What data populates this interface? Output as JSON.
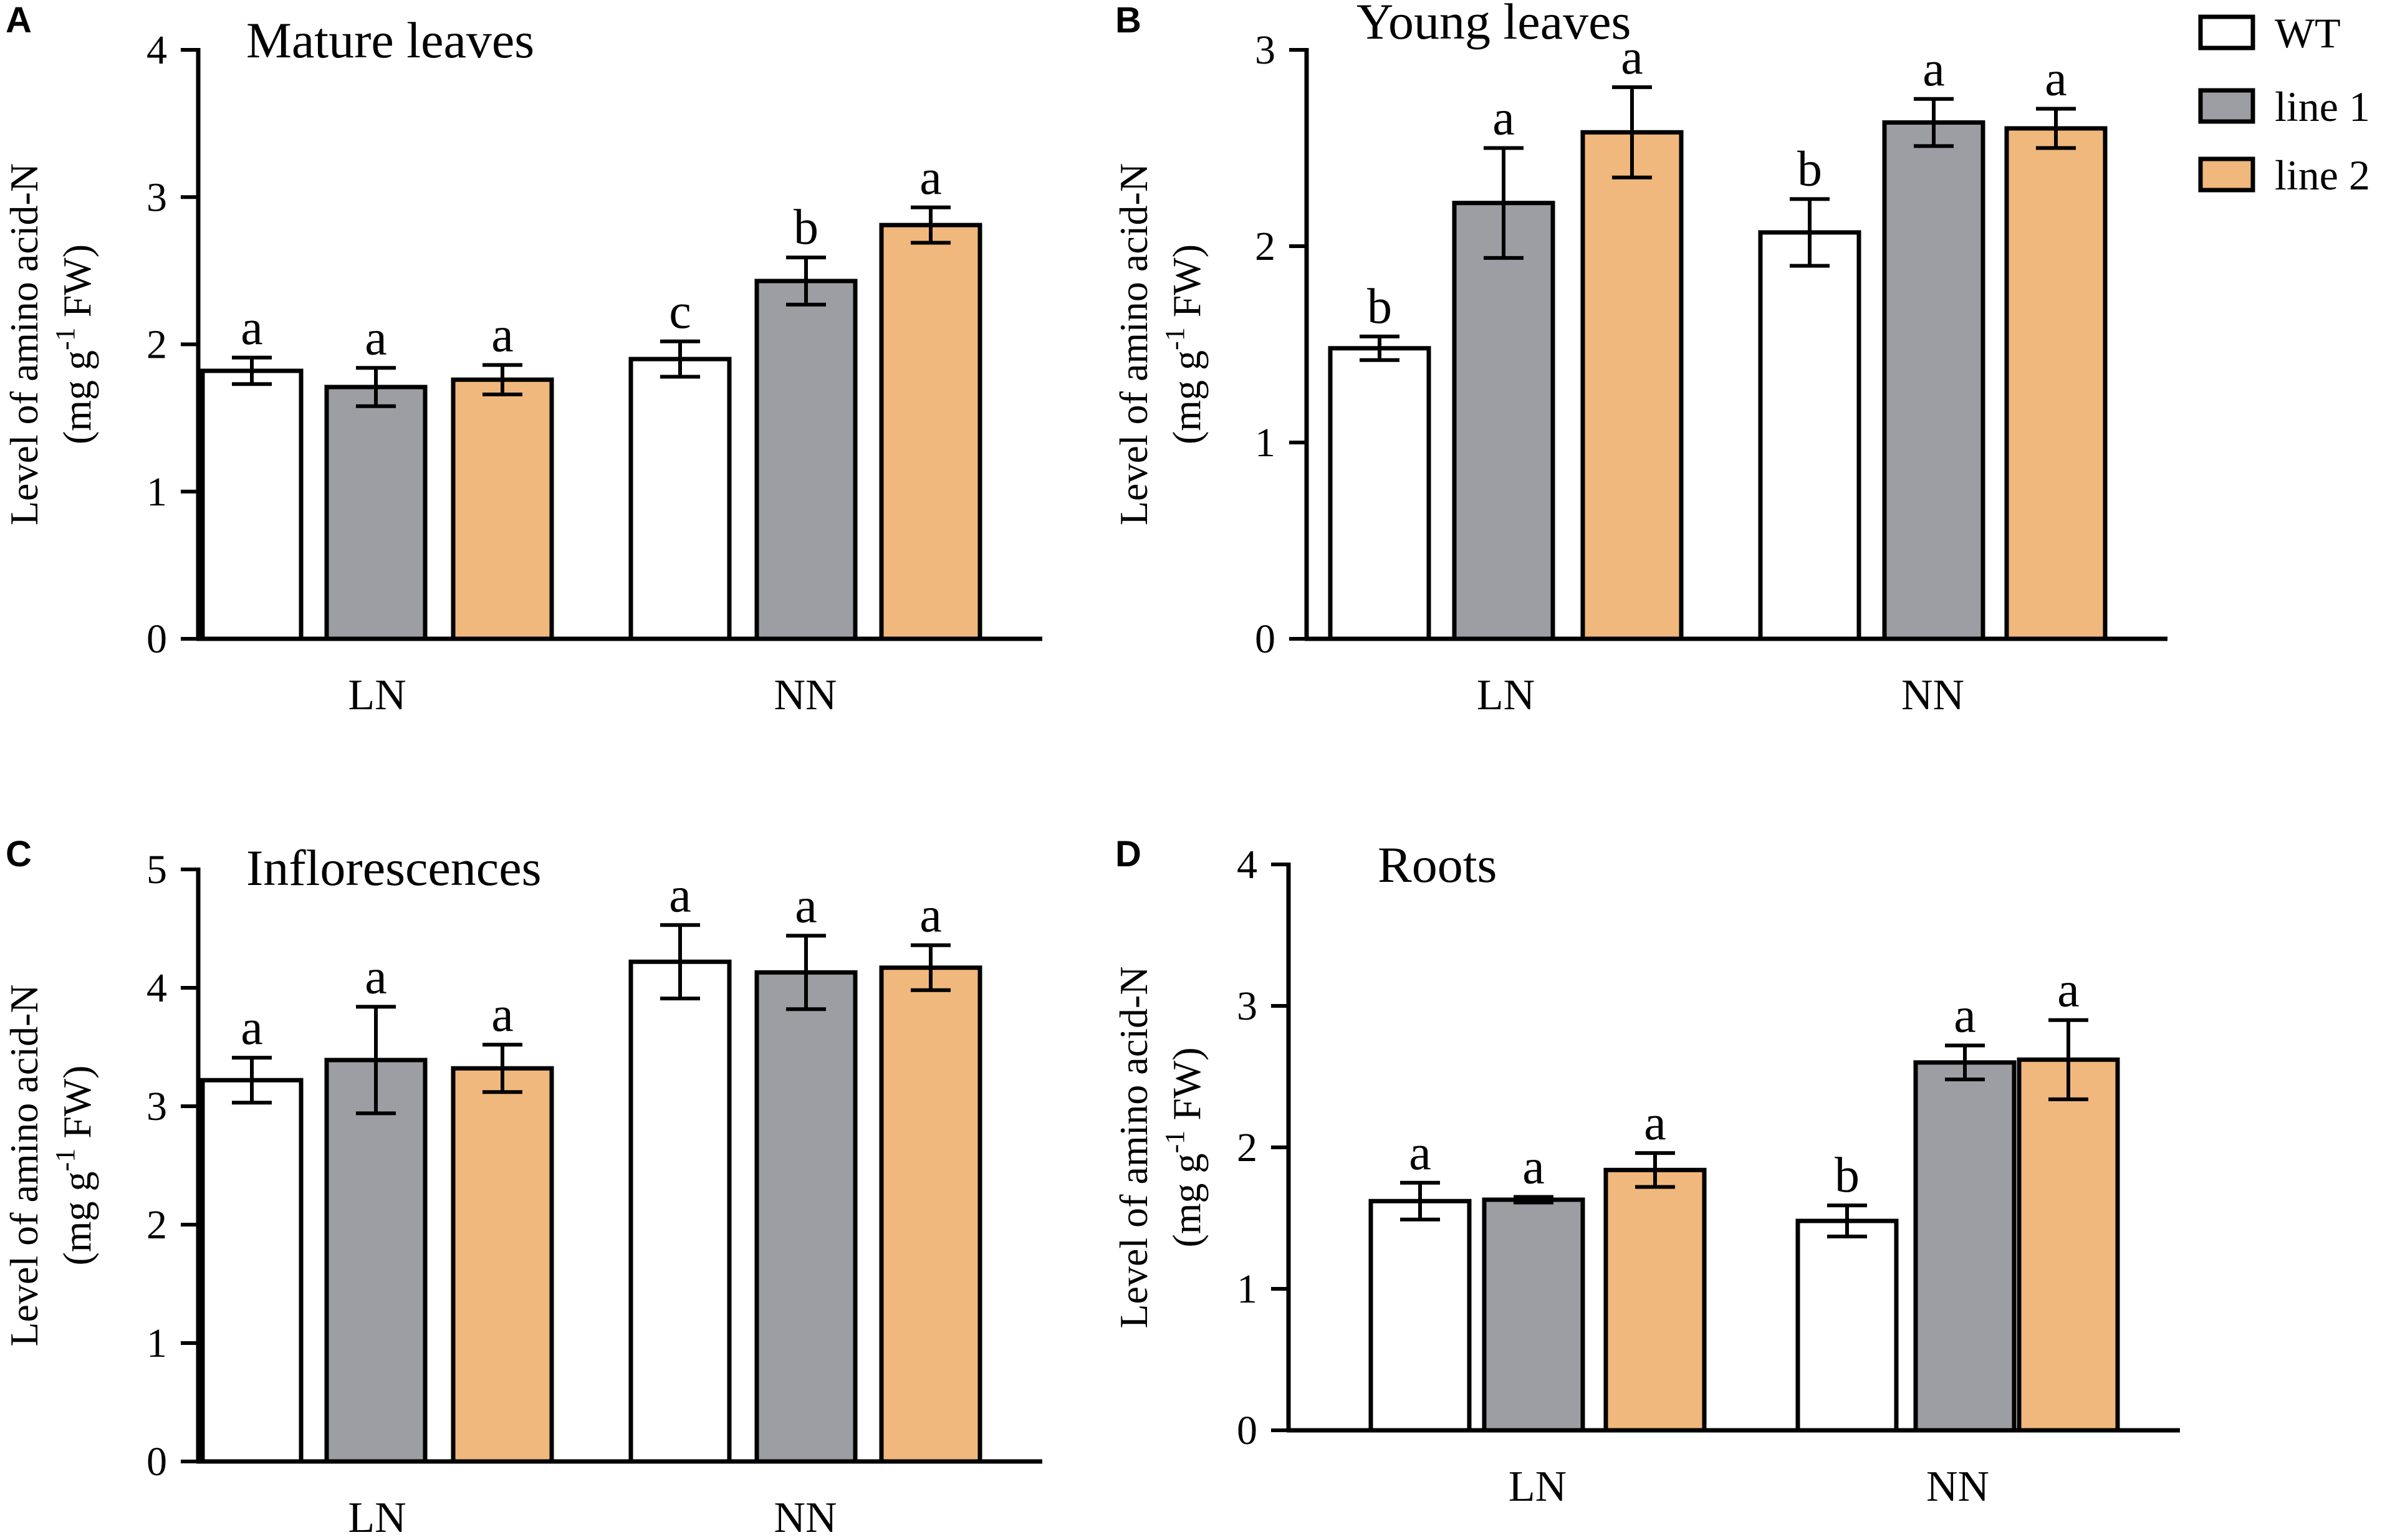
{
  "figure": {
    "legend": {
      "placement": "top-right",
      "items": [
        {
          "label": "WT",
          "color": "#ffffff"
        },
        {
          "label": "line 1",
          "color": "#9d9da4"
        },
        {
          "label": "line 2",
          "color": "#f0b87c"
        }
      ]
    }
  },
  "chart_data": [
    {
      "panel": "A",
      "type": "bar",
      "title": "Mature leaves",
      "ylabel_line1": "Level of amino acid-N",
      "ylabel_line2_pre": "(mg g",
      "ylabel_sup": "-1",
      "ylabel_line2_post": " FW)",
      "ylim": [
        0,
        4
      ],
      "yticks": [
        0,
        1,
        2,
        3,
        4
      ],
      "categories": [
        "LN",
        "NN"
      ],
      "series": [
        {
          "name": "WT",
          "values": [
            1.82,
            1.9
          ],
          "errors": [
            0.09,
            0.12
          ],
          "letters": [
            "a",
            "c"
          ]
        },
        {
          "name": "line 1",
          "values": [
            1.71,
            2.43
          ],
          "errors": [
            0.13,
            0.16
          ],
          "letters": [
            "a",
            "b"
          ]
        },
        {
          "name": "line 2",
          "values": [
            1.76,
            2.81
          ],
          "errors": [
            0.1,
            0.12
          ],
          "letters": [
            "a",
            "a"
          ]
        }
      ]
    },
    {
      "panel": "B",
      "type": "bar",
      "title": "Young leaves",
      "ylabel_line1": "Level of amino acid-N",
      "ylabel_line2_pre": "(mg g",
      "ylabel_sup": "-1",
      "ylabel_line2_post": " FW)",
      "ylim": [
        0,
        3
      ],
      "yticks": [
        0,
        1,
        2,
        3
      ],
      "categories": [
        "LN",
        "NN"
      ],
      "series": [
        {
          "name": "WT",
          "values": [
            1.48,
            2.07
          ],
          "errors": [
            0.06,
            0.17
          ],
          "letters": [
            "b",
            "b"
          ]
        },
        {
          "name": "line 1",
          "values": [
            2.22,
            2.63
          ],
          "errors": [
            0.28,
            0.12
          ],
          "letters": [
            "a",
            "a"
          ]
        },
        {
          "name": "line 2",
          "values": [
            2.58,
            2.6
          ],
          "errors": [
            0.23,
            0.1
          ],
          "letters": [
            "a",
            "a"
          ]
        }
      ]
    },
    {
      "panel": "C",
      "type": "bar",
      "title": "Inflorescences",
      "ylabel_line1": "Level of amino acid-N",
      "ylabel_line2_pre": "(mg g",
      "ylabel_sup": "-1",
      "ylabel_line2_post": " FW)",
      "ylim": [
        0,
        5
      ],
      "yticks": [
        0,
        1,
        2,
        3,
        4,
        5
      ],
      "categories": [
        "LN",
        "NN"
      ],
      "series": [
        {
          "name": "WT",
          "values": [
            3.22,
            4.22
          ],
          "errors": [
            0.19,
            0.31
          ],
          "letters": [
            "a",
            "a"
          ]
        },
        {
          "name": "line 1",
          "values": [
            3.39,
            4.13
          ],
          "errors": [
            0.45,
            0.31
          ],
          "letters": [
            "a",
            "a"
          ]
        },
        {
          "name": "line 2",
          "values": [
            3.32,
            4.17
          ],
          "errors": [
            0.2,
            0.19
          ],
          "letters": [
            "a",
            "a"
          ]
        }
      ]
    },
    {
      "panel": "D",
      "type": "bar",
      "title": "Roots",
      "ylabel_line1": "Level of amino acid-N",
      "ylabel_line2_pre": "(mg g",
      "ylabel_sup": "-1",
      "ylabel_line2_post": " FW)",
      "ylim": [
        0,
        4
      ],
      "yticks": [
        0,
        1,
        2,
        3,
        4
      ],
      "categories": [
        "LN",
        "NN"
      ],
      "series": [
        {
          "name": "WT",
          "values": [
            1.62,
            1.48
          ],
          "errors": [
            0.13,
            0.11
          ],
          "letters": [
            "a",
            "b"
          ]
        },
        {
          "name": "line 1",
          "values": [
            1.63,
            2.6
          ],
          "errors": [
            0.02,
            0.12
          ],
          "letters": [
            "a",
            "a"
          ]
        },
        {
          "name": "line 2",
          "values": [
            1.84,
            2.62
          ],
          "errors": [
            0.12,
            0.28
          ],
          "letters": [
            "a",
            "a"
          ]
        }
      ]
    }
  ]
}
